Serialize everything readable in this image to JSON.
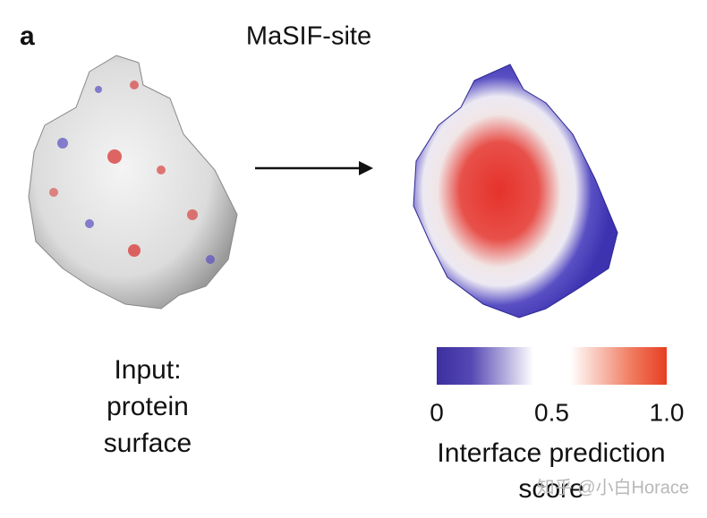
{
  "panel_label": "a",
  "title": "MaSIF-site",
  "input_label": [
    "Input:",
    "protein",
    "surface"
  ],
  "colorbar": {
    "ticks": [
      0,
      0.5,
      {
        "value": 1,
        "label": "1.0"
      }
    ],
    "label": [
      "Interface prediction",
      "score"
    ]
  },
  "watermark": "知乎 @小白Horace"
}
